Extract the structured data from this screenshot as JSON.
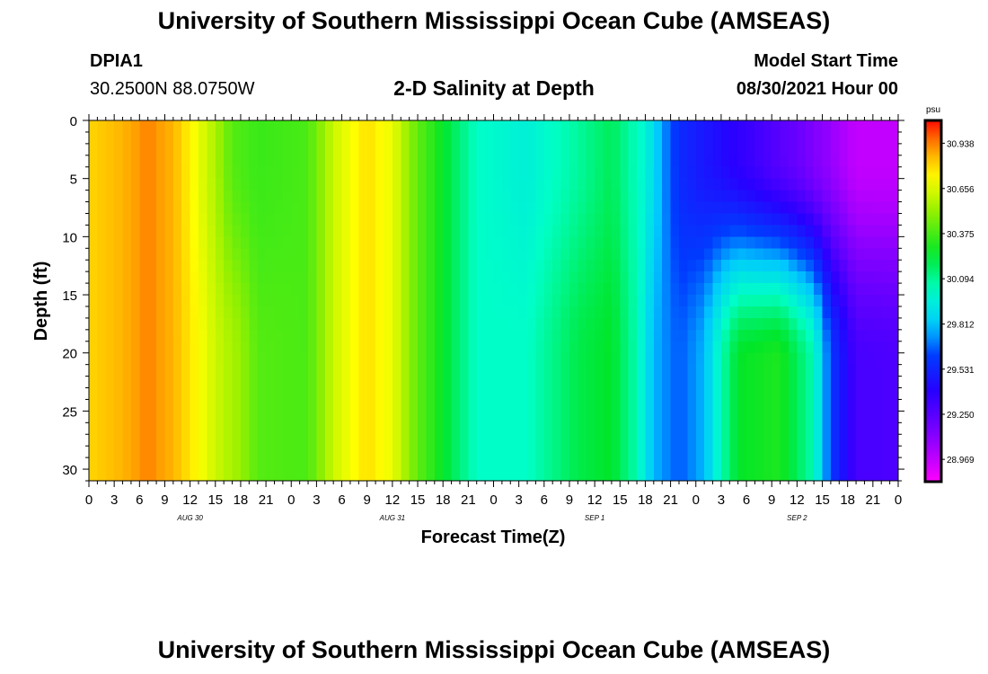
{
  "header": {
    "title": "University of Southern Mississippi Ocean Cube (AMSEAS)",
    "footer_title": "University of Southern Mississippi Ocean Cube (AMSEAS)",
    "station_id": "DPIA1",
    "station_coords": "30.2500N  88.0750W",
    "plot_title": "2-D Salinity at Depth",
    "model_start_label": "Model Start Time",
    "model_start_value": "08/30/2021 Hour 00"
  },
  "chart_data": {
    "type": "heatmap",
    "title": "2-D Salinity at Depth",
    "xlabel": "Forecast Time(Z)",
    "ylabel": "Depth (ft)",
    "x_hours_range": [
      0,
      96
    ],
    "ylim": [
      0,
      31
    ],
    "y_inverted": true,
    "x_tick_labels": [
      "0",
      "3",
      "6",
      "9",
      "12",
      "15",
      "18",
      "21",
      "0",
      "3",
      "6",
      "9",
      "12",
      "15",
      "18",
      "21",
      "0",
      "3",
      "6",
      "9",
      "12",
      "15",
      "18",
      "21",
      "0",
      "3",
      "6",
      "9",
      "12",
      "15",
      "18",
      "21",
      "0"
    ],
    "y_ticks": [
      0,
      5,
      10,
      15,
      20,
      25,
      30
    ],
    "date_labels": [
      {
        "text": "AUG 30",
        "hour": 12
      },
      {
        "text": "AUG 31",
        "hour": 36
      },
      {
        "text": "SEP 1",
        "hour": 60
      },
      {
        "text": "SEP 2",
        "hour": 84
      }
    ],
    "colorbar": {
      "unit": "psu",
      "min": 28.83,
      "max": 31.08,
      "tick_values": [
        "30.938",
        "30.656",
        "30.375",
        "30.094",
        "29.812",
        "29.531",
        "29.250",
        "28.969"
      ]
    },
    "surface_salinity_by_hour": [
      [
        0,
        30.8
      ],
      [
        4,
        30.86
      ],
      [
        7,
        30.94
      ],
      [
        10,
        30.86
      ],
      [
        13,
        30.68
      ],
      [
        15,
        30.56
      ],
      [
        17,
        30.4
      ],
      [
        20,
        30.35
      ],
      [
        26,
        30.38
      ],
      [
        29,
        30.62
      ],
      [
        33,
        30.78
      ],
      [
        36,
        30.68
      ],
      [
        39,
        30.42
      ],
      [
        42,
        30.25
      ],
      [
        46,
        30.02
      ],
      [
        52,
        29.96
      ],
      [
        58,
        30.08
      ],
      [
        62,
        30.18
      ],
      [
        66,
        29.98
      ],
      [
        68,
        29.75
      ],
      [
        70,
        29.55
      ],
      [
        76,
        29.4
      ],
      [
        84,
        29.2
      ],
      [
        91,
        28.97
      ],
      [
        96,
        28.97
      ]
    ],
    "bottom_salinity_by_hour": [
      [
        0,
        30.8
      ],
      [
        4,
        30.86
      ],
      [
        7,
        30.94
      ],
      [
        10,
        30.86
      ],
      [
        13,
        30.72
      ],
      [
        15,
        30.62
      ],
      [
        18,
        30.52
      ],
      [
        20,
        30.4
      ],
      [
        26,
        30.38
      ],
      [
        29,
        30.62
      ],
      [
        33,
        30.78
      ],
      [
        36,
        30.68
      ],
      [
        39,
        30.42
      ],
      [
        42,
        30.25
      ],
      [
        46,
        30.02
      ],
      [
        52,
        30.02
      ],
      [
        58,
        30.2
      ],
      [
        62,
        30.25
      ],
      [
        65,
        30.05
      ],
      [
        67,
        29.78
      ],
      [
        70,
        29.65
      ],
      [
        73,
        29.78
      ],
      [
        75,
        30.05
      ],
      [
        77,
        30.25
      ],
      [
        82,
        30.3
      ],
      [
        86,
        30.05
      ],
      [
        88,
        29.6
      ],
      [
        91,
        29.3
      ],
      [
        96,
        29.28
      ]
    ],
    "mid_depth_feature": {
      "description_hours": [
        70,
        88
      ],
      "core_salinity": 30.2
    }
  }
}
